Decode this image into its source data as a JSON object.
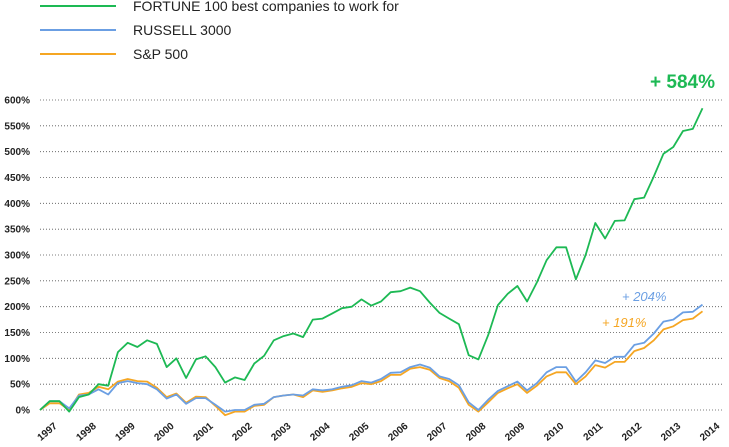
{
  "chart_data": {
    "type": "line",
    "title": "",
    "xlabel": "",
    "ylabel": "",
    "ylim": [
      0,
      600
    ],
    "xlim": [
      1996.75,
      2014.25
    ],
    "grid": "horizontal-dotted",
    "legend_position": "top-left",
    "y_ticks": [
      "0%",
      "50%",
      "100%",
      "150%",
      "200%",
      "250%",
      "300%",
      "350%",
      "400%",
      "450%",
      "500%",
      "550%",
      "600%"
    ],
    "x_ticks": [
      "1997",
      "1998",
      "1999",
      "2000",
      "2001",
      "2002",
      "2003",
      "2004",
      "2005",
      "2006",
      "2007",
      "2008",
      "2009",
      "2010",
      "2011",
      "2012",
      "2013",
      "2014"
    ],
    "series": [
      {
        "name": "FORTUNE 100 best companies to work for",
        "color": "#1db954",
        "points": [
          [
            1996.75,
            0
          ],
          [
            1997,
            17
          ],
          [
            1997.25,
            17
          ],
          [
            1997.5,
            -3
          ],
          [
            1997.75,
            25
          ],
          [
            1998,
            30
          ],
          [
            1998.25,
            50
          ],
          [
            1998.5,
            47
          ],
          [
            1998.75,
            112
          ],
          [
            1999,
            130
          ],
          [
            1999.25,
            122
          ],
          [
            1999.5,
            135
          ],
          [
            1999.75,
            128
          ],
          [
            2000,
            83
          ],
          [
            2000.25,
            100
          ],
          [
            2000.5,
            62
          ],
          [
            2000.75,
            98
          ],
          [
            2001,
            104
          ],
          [
            2001.25,
            83
          ],
          [
            2001.5,
            53
          ],
          [
            2001.75,
            63
          ],
          [
            2002,
            58
          ],
          [
            2002.25,
            90
          ],
          [
            2002.5,
            105
          ],
          [
            2002.75,
            135
          ],
          [
            2003,
            143
          ],
          [
            2003.25,
            148
          ],
          [
            2003.5,
            141
          ],
          [
            2003.75,
            175
          ],
          [
            2004,
            177
          ],
          [
            2004.25,
            187
          ],
          [
            2004.5,
            197
          ],
          [
            2004.75,
            200
          ],
          [
            2005,
            214
          ],
          [
            2005.25,
            202
          ],
          [
            2005.5,
            210
          ],
          [
            2005.75,
            228
          ],
          [
            2006,
            230
          ],
          [
            2006.25,
            237
          ],
          [
            2006.5,
            230
          ],
          [
            2006.75,
            208
          ],
          [
            2007,
            188
          ],
          [
            2007.25,
            177
          ],
          [
            2007.5,
            166
          ],
          [
            2007.75,
            106
          ],
          [
            2008,
            98
          ],
          [
            2008.25,
            145
          ],
          [
            2008.5,
            203
          ],
          [
            2008.75,
            225
          ],
          [
            2009,
            240
          ],
          [
            2009.25,
            210
          ],
          [
            2009.5,
            247
          ],
          [
            2009.75,
            290
          ],
          [
            2010,
            315
          ],
          [
            2010.25,
            315
          ],
          [
            2010.5,
            253
          ],
          [
            2010.75,
            300
          ],
          [
            2011,
            362
          ],
          [
            2011.25,
            332
          ],
          [
            2011.5,
            366
          ],
          [
            2011.75,
            367
          ],
          [
            2012,
            408
          ],
          [
            2012.25,
            411
          ],
          [
            2012.5,
            452
          ],
          [
            2012.75,
            496
          ],
          [
            2013,
            509
          ],
          [
            2013.25,
            540
          ],
          [
            2013.5,
            544
          ],
          [
            2013.75,
            584
          ]
        ]
      },
      {
        "name": "RUSSELL 3000",
        "color": "#6b9fe3",
        "points": [
          [
            1996.75,
            0
          ],
          [
            1997,
            17
          ],
          [
            1997.25,
            17
          ],
          [
            1997.5,
            3
          ],
          [
            1997.75,
            28
          ],
          [
            1998,
            30
          ],
          [
            1998.25,
            40
          ],
          [
            1998.5,
            30
          ],
          [
            1998.75,
            52
          ],
          [
            1999,
            56
          ],
          [
            1999.25,
            52
          ],
          [
            1999.5,
            50
          ],
          [
            1999.75,
            40
          ],
          [
            2000,
            22
          ],
          [
            2000.25,
            30
          ],
          [
            2000.5,
            12
          ],
          [
            2000.75,
            23
          ],
          [
            2001,
            23
          ],
          [
            2001.25,
            10
          ],
          [
            2001.5,
            -3
          ],
          [
            2001.75,
            0
          ],
          [
            2002,
            0
          ],
          [
            2002.25,
            10
          ],
          [
            2002.5,
            12
          ],
          [
            2002.75,
            25
          ],
          [
            2003,
            28
          ],
          [
            2003.25,
            30
          ],
          [
            2003.5,
            28
          ],
          [
            2003.75,
            40
          ],
          [
            2004,
            38
          ],
          [
            2004.25,
            40
          ],
          [
            2004.5,
            45
          ],
          [
            2004.75,
            48
          ],
          [
            2005,
            56
          ],
          [
            2005.25,
            53
          ],
          [
            2005.5,
            60
          ],
          [
            2005.75,
            72
          ],
          [
            2006,
            73
          ],
          [
            2006.25,
            83
          ],
          [
            2006.5,
            88
          ],
          [
            2006.75,
            82
          ],
          [
            2007,
            65
          ],
          [
            2007.25,
            60
          ],
          [
            2007.5,
            48
          ],
          [
            2007.75,
            15
          ],
          [
            2008,
            0
          ],
          [
            2008.25,
            20
          ],
          [
            2008.5,
            37
          ],
          [
            2008.75,
            46
          ],
          [
            2009,
            55
          ],
          [
            2009.25,
            38
          ],
          [
            2009.5,
            52
          ],
          [
            2009.75,
            73
          ],
          [
            2010,
            83
          ],
          [
            2010.25,
            83
          ],
          [
            2010.5,
            55
          ],
          [
            2010.75,
            73
          ],
          [
            2011,
            96
          ],
          [
            2011.25,
            91
          ],
          [
            2011.5,
            103
          ],
          [
            2011.75,
            103
          ],
          [
            2012,
            126
          ],
          [
            2012.25,
            130
          ],
          [
            2012.5,
            148
          ],
          [
            2012.75,
            171
          ],
          [
            2013,
            175
          ],
          [
            2013.25,
            189
          ],
          [
            2013.5,
            190
          ],
          [
            2013.75,
            204
          ]
        ]
      },
      {
        "name": "S&P 500",
        "color": "#f5a623",
        "points": [
          [
            1996.75,
            0
          ],
          [
            1997,
            13
          ],
          [
            1997.25,
            13
          ],
          [
            1997.5,
            0
          ],
          [
            1997.75,
            30
          ],
          [
            1998,
            33
          ],
          [
            1998.25,
            45
          ],
          [
            1998.5,
            40
          ],
          [
            1998.75,
            55
          ],
          [
            1999,
            60
          ],
          [
            1999.25,
            56
          ],
          [
            1999.5,
            55
          ],
          [
            1999.75,
            43
          ],
          [
            2000,
            25
          ],
          [
            2000.25,
            32
          ],
          [
            2000.5,
            14
          ],
          [
            2000.75,
            26
          ],
          [
            2001,
            25
          ],
          [
            2001.25,
            8
          ],
          [
            2001.5,
            -10
          ],
          [
            2001.75,
            -3
          ],
          [
            2002,
            -3
          ],
          [
            2002.25,
            8
          ],
          [
            2002.5,
            10
          ],
          [
            2002.75,
            25
          ],
          [
            2003,
            28
          ],
          [
            2003.25,
            30
          ],
          [
            2003.5,
            25
          ],
          [
            2003.75,
            38
          ],
          [
            2004,
            35
          ],
          [
            2004.25,
            38
          ],
          [
            2004.5,
            42
          ],
          [
            2004.75,
            45
          ],
          [
            2005,
            52
          ],
          [
            2005.25,
            50
          ],
          [
            2005.5,
            56
          ],
          [
            2005.75,
            68
          ],
          [
            2006,
            68
          ],
          [
            2006.25,
            80
          ],
          [
            2006.5,
            83
          ],
          [
            2006.75,
            78
          ],
          [
            2007,
            62
          ],
          [
            2007.25,
            56
          ],
          [
            2007.5,
            43
          ],
          [
            2007.75,
            10
          ],
          [
            2008,
            -3
          ],
          [
            2008.25,
            15
          ],
          [
            2008.5,
            33
          ],
          [
            2008.75,
            42
          ],
          [
            2009,
            50
          ],
          [
            2009.25,
            33
          ],
          [
            2009.5,
            47
          ],
          [
            2009.75,
            65
          ],
          [
            2010,
            73
          ],
          [
            2010.25,
            73
          ],
          [
            2010.5,
            50
          ],
          [
            2010.75,
            65
          ],
          [
            2011,
            87
          ],
          [
            2011.25,
            82
          ],
          [
            2011.5,
            93
          ],
          [
            2011.75,
            93
          ],
          [
            2012,
            114
          ],
          [
            2012.25,
            120
          ],
          [
            2012.5,
            135
          ],
          [
            2012.75,
            156
          ],
          [
            2013,
            162
          ],
          [
            2013.25,
            174
          ],
          [
            2013.5,
            177
          ],
          [
            2013.75,
            191
          ]
        ]
      }
    ],
    "annotations": [
      {
        "text": "+ 584%",
        "series": 0,
        "style": "big"
      },
      {
        "text": "+ 204%",
        "series": 1,
        "style": "italic"
      },
      {
        "text": "+ 191%",
        "series": 2,
        "style": "italic"
      }
    ]
  }
}
